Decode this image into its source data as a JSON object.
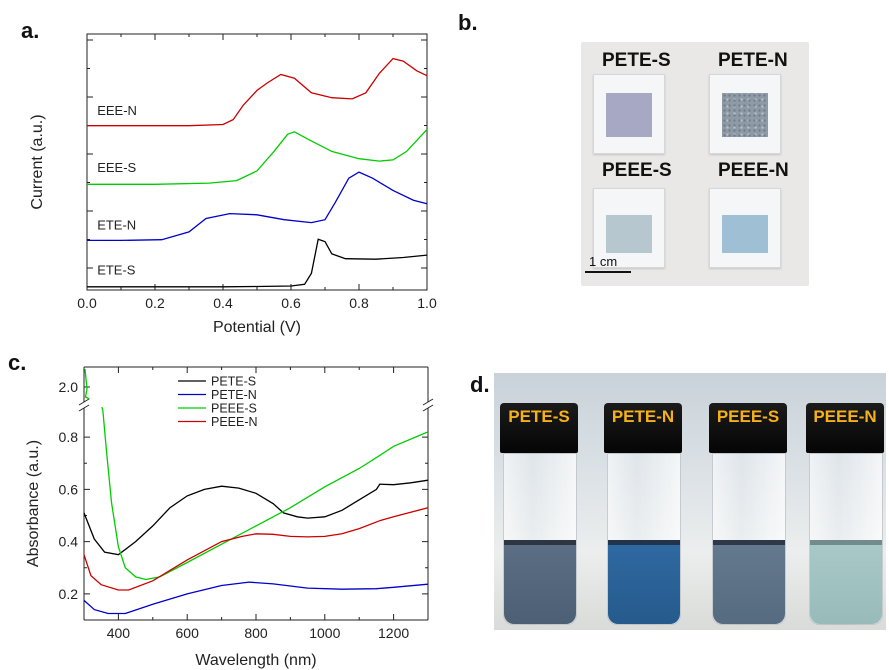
{
  "panels": {
    "a": {
      "letter": "a.",
      "chart_data": {
        "type": "line",
        "xlabel": "Potential (V)",
        "ylabel": "Current (a.u.)",
        "xlim": [
          0.0,
          1.0
        ],
        "x_ticks": [
          "0.0",
          "0.2",
          "0.4",
          "0.6",
          "0.8",
          "1.0"
        ],
        "y_tick_labels": "none",
        "series": [
          {
            "name": "ETE-S",
            "color": "#000000",
            "points": [
              [
                0.0,
                0.5
              ],
              [
                0.2,
                0.5
              ],
              [
                0.4,
                0.5
              ],
              [
                0.5,
                0.6
              ],
              [
                0.6,
                0.8
              ],
              [
                0.64,
                1.5
              ],
              [
                0.66,
                6
              ],
              [
                0.68,
                20
              ],
              [
                0.7,
                19
              ],
              [
                0.72,
                14
              ],
              [
                0.76,
                12
              ],
              [
                0.85,
                11.8
              ],
              [
                0.93,
                12.5
              ],
              [
                1.0,
                13.5
              ]
            ]
          },
          {
            "name": "ETE-N",
            "color": "#0000cc",
            "points": [
              [
                0.0,
                19.5
              ],
              [
                0.1,
                19.5
              ],
              [
                0.22,
                19.8
              ],
              [
                0.3,
                23
              ],
              [
                0.35,
                28.5
              ],
              [
                0.42,
                30.5
              ],
              [
                0.5,
                30
              ],
              [
                0.58,
                28
              ],
              [
                0.66,
                26.8
              ],
              [
                0.7,
                28
              ],
              [
                0.73,
                35
              ],
              [
                0.77,
                45
              ],
              [
                0.8,
                47.5
              ],
              [
                0.84,
                45
              ],
              [
                0.9,
                40
              ],
              [
                0.96,
                36
              ],
              [
                1.0,
                34.5
              ]
            ]
          },
          {
            "name": "EEE-S",
            "color": "#00cc00",
            "points": [
              [
                0.0,
                42.5
              ],
              [
                0.2,
                42.5
              ],
              [
                0.36,
                43
              ],
              [
                0.44,
                44
              ],
              [
                0.5,
                48
              ],
              [
                0.55,
                56
              ],
              [
                0.59,
                63
              ],
              [
                0.61,
                64
              ],
              [
                0.65,
                61
              ],
              [
                0.72,
                56
              ],
              [
                0.8,
                53
              ],
              [
                0.86,
                52
              ],
              [
                0.9,
                52.5
              ],
              [
                0.94,
                56
              ],
              [
                1.0,
                65
              ]
            ]
          },
          {
            "name": "EEE-N",
            "color": "#cc0000",
            "points": [
              [
                0.0,
                66.5
              ],
              [
                0.3,
                66.5
              ],
              [
                0.4,
                67
              ],
              [
                0.43,
                69
              ],
              [
                0.46,
                75
              ],
              [
                0.5,
                81
              ],
              [
                0.53,
                84
              ],
              [
                0.57,
                87.5
              ],
              [
                0.61,
                86
              ],
              [
                0.66,
                80
              ],
              [
                0.72,
                78
              ],
              [
                0.78,
                77.5
              ],
              [
                0.82,
                80
              ],
              [
                0.86,
                88
              ],
              [
                0.9,
                94
              ],
              [
                0.93,
                93
              ],
              [
                0.97,
                89
              ],
              [
                1.0,
                87
              ]
            ]
          }
        ],
        "labels": [
          {
            "text": "ETE-S",
            "x": 0.03,
            "y": 5.5
          },
          {
            "text": "ETE-N",
            "x": 0.03,
            "y": 24
          },
          {
            "text": "EEE-S",
            "x": 0.03,
            "y": 47.5
          },
          {
            "text": "EEE-N",
            "x": 0.03,
            "y": 71
          }
        ]
      }
    },
    "b": {
      "letter": "b.",
      "samples": [
        "PETE-S",
        "PETE-N",
        "PEEE-S",
        "PEEE-N"
      ],
      "scale_bar": "1 cm",
      "colors": {
        "PETE-S": "#a7a9c4",
        "PETE-N": "#8e9aa6",
        "PEEE-S": "#b7c7cf",
        "PEEE-N": "#9fbfd5"
      }
    },
    "c": {
      "letter": "c.",
      "chart_data": {
        "type": "line",
        "xlabel": "Wavelength (nm)",
        "ylabel": "Absorbance (a.u.)",
        "xlim": [
          300,
          1300
        ],
        "x_ticks": [
          "400",
          "600",
          "800",
          "1000",
          "1200"
        ],
        "y_ticks": [
          "0.2",
          "0.4",
          "0.6",
          "0.8"
        ],
        "y_break_tick": "2.0",
        "axis_break": true,
        "legend": "top-center",
        "series": [
          {
            "name": "PETE-S",
            "color": "#000000",
            "points": [
              [
                300,
                0.51
              ],
              [
                330,
                0.41
              ],
              [
                360,
                0.36
              ],
              [
                400,
                0.35
              ],
              [
                450,
                0.4
              ],
              [
                500,
                0.46
              ],
              [
                550,
                0.53
              ],
              [
                600,
                0.575
              ],
              [
                650,
                0.6
              ],
              [
                700,
                0.612
              ],
              [
                750,
                0.605
              ],
              [
                800,
                0.585
              ],
              [
                850,
                0.545
              ],
              [
                880,
                0.51
              ],
              [
                920,
                0.495
              ],
              [
                950,
                0.49
              ],
              [
                1000,
                0.495
              ],
              [
                1050,
                0.52
              ],
              [
                1100,
                0.56
              ],
              [
                1150,
                0.6
              ],
              [
                1160,
                0.62
              ],
              [
                1200,
                0.618
              ],
              [
                1250,
                0.625
              ],
              [
                1300,
                0.635
              ]
            ]
          },
          {
            "name": "PETE-N",
            "color": "#0000cc",
            "points": [
              [
                300,
                0.175
              ],
              [
                330,
                0.14
              ],
              [
                370,
                0.125
              ],
              [
                420,
                0.125
              ],
              [
                500,
                0.16
              ],
              [
                600,
                0.2
              ],
              [
                700,
                0.232
              ],
              [
                780,
                0.245
              ],
              [
                850,
                0.238
              ],
              [
                950,
                0.222
              ],
              [
                1050,
                0.218
              ],
              [
                1150,
                0.22
              ],
              [
                1200,
                0.225
              ],
              [
                1300,
                0.237
              ]
            ]
          },
          {
            "name": "PEEE-S",
            "color": "#00cc00",
            "points": [
              [
                355,
                0.9
              ],
              [
                365,
                0.75
              ],
              [
                380,
                0.55
              ],
              [
                400,
                0.38
              ],
              [
                420,
                0.3
              ],
              [
                450,
                0.265
              ],
              [
                480,
                0.255
              ],
              [
                520,
                0.265
              ],
              [
                600,
                0.32
              ],
              [
                700,
                0.39
              ],
              [
                800,
                0.46
              ],
              [
                900,
                0.53
              ],
              [
                1000,
                0.61
              ],
              [
                1100,
                0.68
              ],
              [
                1160,
                0.73
              ],
              [
                1200,
                0.765
              ],
              [
                1300,
                0.82
              ]
            ]
          },
          {
            "name": "PEEE-N",
            "color": "#cc0000",
            "points": [
              [
                300,
                0.35
              ],
              [
                320,
                0.27
              ],
              [
                350,
                0.235
              ],
              [
                400,
                0.215
              ],
              [
                430,
                0.215
              ],
              [
                500,
                0.25
              ],
              [
                600,
                0.33
              ],
              [
                700,
                0.4
              ],
              [
                760,
                0.42
              ],
              [
                800,
                0.43
              ],
              [
                850,
                0.428
              ],
              [
                900,
                0.42
              ],
              [
                950,
                0.418
              ],
              [
                1000,
                0.42
              ],
              [
                1050,
                0.43
              ],
              [
                1100,
                0.45
              ],
              [
                1160,
                0.48
              ],
              [
                1200,
                0.495
              ],
              [
                1300,
                0.53
              ]
            ]
          }
        ]
      }
    },
    "d": {
      "letter": "d.",
      "samples": [
        "PETE-S",
        "PETE-N",
        "PEEE-S",
        "PEEE-N"
      ],
      "liquid_colors": {
        "PETE-S": "#5d6f84",
        "PETE-N": "#2f6aa3",
        "PEEE-S": "#647a8f",
        "PEEE-N": "#a9c9c8"
      }
    }
  }
}
